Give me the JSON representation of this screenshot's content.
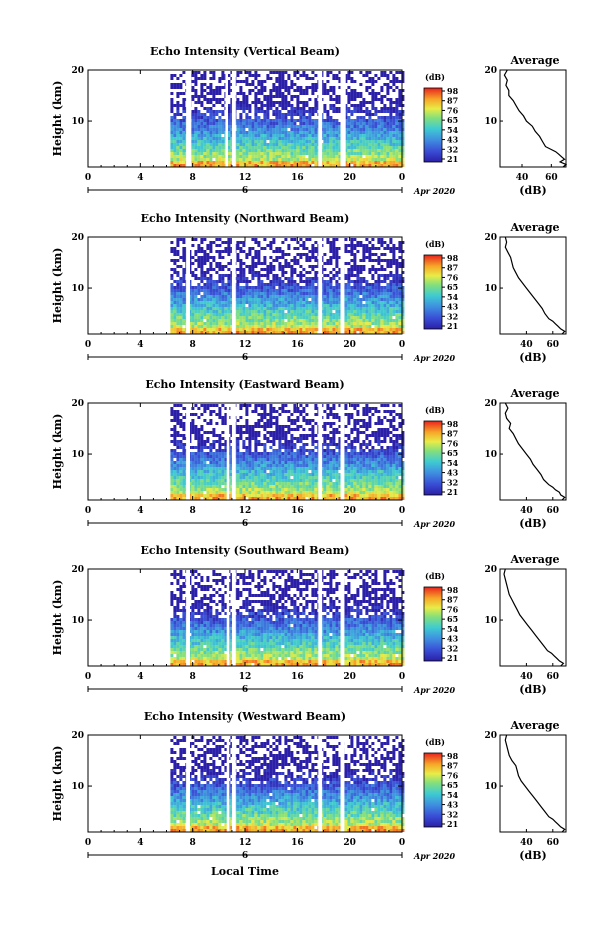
{
  "chart_data": [
    {
      "type": "heatmap",
      "title": "Echo Intensity (Vertical Beam)",
      "ylabel": "Height (km)",
      "xticks": [
        "0",
        "4",
        "8",
        "12",
        "16",
        "20",
        "0"
      ],
      "yticks": [
        "20",
        "10"
      ],
      "date_label": "Apr 2020",
      "day_label": "6",
      "xlim": [
        0,
        24
      ],
      "ylim": [
        1,
        20
      ],
      "data_start_hour": 6.3,
      "gaps": [
        [
          7.5,
          7.9
        ],
        [
          10.5,
          10.7
        ],
        [
          11.0,
          11.3
        ],
        [
          17.6,
          17.9
        ],
        [
          19.3,
          19.7
        ]
      ],
      "colorbar": {
        "unit": "(dB)",
        "ticks": [
          "98",
          "87",
          "76",
          "65",
          "54",
          "43",
          "32",
          "21"
        ],
        "range": [
          21,
          98
        ]
      },
      "profile": {
        "title": "Average",
        "xlabel": "(dB)",
        "xticks": [
          "40",
          "60"
        ],
        "yticks": [
          "20",
          "10"
        ],
        "xlim": [
          25,
          70
        ],
        "ylim": [
          1,
          20
        ],
        "heights": [
          1,
          1.5,
          2,
          2.5,
          3,
          3.5,
          4,
          5,
          6,
          7,
          8,
          9,
          10,
          11,
          12,
          13,
          14,
          15,
          16,
          17,
          18,
          19,
          20
        ],
        "values": [
          68,
          70,
          66,
          69,
          67,
          65,
          63,
          56,
          54,
          52,
          49,
          47,
          43,
          41,
          38,
          36,
          34,
          31,
          31,
          29,
          30,
          28,
          30
        ]
      }
    },
    {
      "type": "heatmap",
      "title": "Echo Intensity (Northward Beam)",
      "ylabel": "Height (km)",
      "xticks": [
        "0",
        "4",
        "8",
        "12",
        "16",
        "20",
        "0"
      ],
      "yticks": [
        "20",
        "10"
      ],
      "date_label": "Apr 2020",
      "day_label": "6",
      "xlim": [
        0,
        24
      ],
      "ylim": [
        1,
        20
      ],
      "data_start_hour": 6.3,
      "gaps": [
        [
          7.5,
          7.8
        ],
        [
          11.0,
          11.3
        ],
        [
          17.6,
          17.9
        ],
        [
          19.3,
          19.6
        ]
      ],
      "colorbar": {
        "unit": "(dB)",
        "ticks": [
          "98",
          "87",
          "76",
          "65",
          "54",
          "43",
          "32",
          "21"
        ],
        "range": [
          21,
          98
        ]
      },
      "profile": {
        "title": "Average",
        "xlabel": "(dB)",
        "xticks": [
          "40",
          "60"
        ],
        "yticks": [
          "20",
          "10"
        ],
        "xlim": [
          20,
          70
        ],
        "ylim": [
          1,
          20
        ],
        "heights": [
          1,
          1.5,
          2,
          2.5,
          3,
          3.5,
          4,
          5,
          6,
          7,
          8,
          9,
          10,
          11,
          12,
          13,
          14,
          15,
          16,
          17,
          18,
          19,
          20
        ],
        "values": [
          67,
          69,
          66,
          64,
          62,
          60,
          57,
          54,
          52,
          49,
          46,
          43,
          40,
          37,
          34,
          32,
          30,
          29,
          28,
          26,
          24,
          25,
          24
        ]
      }
    },
    {
      "type": "heatmap",
      "title": "Echo Intensity (Eastward Beam)",
      "ylabel": "Height (km)",
      "xticks": [
        "0",
        "4",
        "8",
        "12",
        "16",
        "20",
        "0"
      ],
      "yticks": [
        "20",
        "10"
      ],
      "date_label": "Apr 2020",
      "day_label": "6",
      "xlim": [
        0,
        24
      ],
      "ylim": [
        1,
        20
      ],
      "data_start_hour": 6.3,
      "gaps": [
        [
          7.5,
          7.8
        ],
        [
          10.6,
          10.8
        ],
        [
          11.0,
          11.3
        ],
        [
          17.6,
          17.9
        ],
        [
          19.3,
          19.6
        ]
      ],
      "colorbar": {
        "unit": "(dB)",
        "ticks": [
          "98",
          "87",
          "76",
          "65",
          "54",
          "43",
          "32",
          "21"
        ],
        "range": [
          21,
          98
        ]
      },
      "profile": {
        "title": "Average",
        "xlabel": "(dB)",
        "xticks": [
          "40",
          "60"
        ],
        "yticks": [
          "20",
          "10"
        ],
        "xlim": [
          20,
          70
        ],
        "ylim": [
          1,
          20
        ],
        "heights": [
          1,
          1.5,
          2,
          2.5,
          3,
          3.5,
          4,
          5,
          6,
          7,
          8,
          9,
          10,
          11,
          12,
          13,
          14,
          15,
          16,
          17,
          18,
          19,
          20
        ],
        "values": [
          67,
          69,
          66,
          65,
          62,
          60,
          57,
          53,
          51,
          48,
          45,
          43,
          40,
          37,
          34,
          32,
          30,
          27,
          28,
          25,
          24,
          26,
          24
        ]
      }
    },
    {
      "type": "heatmap",
      "title": "Echo Intensity (Southward Beam)",
      "ylabel": "Height (km)",
      "xticks": [
        "0",
        "4",
        "8",
        "12",
        "16",
        "20",
        "0"
      ],
      "yticks": [
        "20",
        "10"
      ],
      "date_label": "Apr 2020",
      "day_label": "6",
      "xlim": [
        0,
        24
      ],
      "ylim": [
        1,
        20
      ],
      "data_start_hour": 6.3,
      "gaps": [
        [
          7.5,
          7.8
        ],
        [
          10.6,
          10.8
        ],
        [
          11.0,
          11.3
        ],
        [
          17.6,
          17.9
        ],
        [
          19.3,
          19.6
        ]
      ],
      "colorbar": {
        "unit": "(dB)",
        "ticks": [
          "98",
          "87",
          "76",
          "65",
          "54",
          "43",
          "32",
          "21"
        ],
        "range": [
          21,
          98
        ]
      },
      "profile": {
        "title": "Average",
        "xlabel": "(dB)",
        "xticks": [
          "40",
          "60"
        ],
        "yticks": [
          "20",
          "10"
        ],
        "xlim": [
          20,
          70
        ],
        "ylim": [
          1,
          20
        ],
        "heights": [
          1,
          1.5,
          2,
          2.5,
          3,
          3.5,
          4,
          5,
          6,
          7,
          8,
          9,
          10,
          11,
          12,
          13,
          14,
          15,
          16,
          17,
          18,
          19,
          20
        ],
        "values": [
          66,
          68,
          65,
          63,
          61,
          59,
          56,
          53,
          50,
          47,
          44,
          41,
          38,
          35,
          33,
          31,
          29,
          27,
          26,
          25,
          24,
          23,
          24
        ]
      }
    },
    {
      "type": "heatmap",
      "title": "Echo Intensity (Westward Beam)",
      "ylabel": "Height (km)",
      "xlabel": "Local Time",
      "xticks": [
        "0",
        "4",
        "8",
        "12",
        "16",
        "20",
        "0"
      ],
      "yticks": [
        "20",
        "10"
      ],
      "date_label": "Apr 2020",
      "day_label": "6",
      "xlim": [
        0,
        24
      ],
      "ylim": [
        1,
        20
      ],
      "data_start_hour": 6.3,
      "gaps": [
        [
          7.5,
          7.8
        ],
        [
          10.6,
          10.8
        ],
        [
          11.0,
          11.3
        ],
        [
          17.6,
          17.9
        ],
        [
          19.3,
          19.6
        ]
      ],
      "colorbar": {
        "unit": "(dB)",
        "ticks": [
          "98",
          "87",
          "76",
          "65",
          "54",
          "43",
          "32",
          "21"
        ],
        "range": [
          21,
          98
        ]
      },
      "profile": {
        "title": "Average",
        "xlabel": "(dB)",
        "xticks": [
          "40",
          "60"
        ],
        "yticks": [
          "20",
          "10"
        ],
        "xlim": [
          20,
          70
        ],
        "ylim": [
          1,
          20
        ],
        "heights": [
          1,
          1.5,
          2,
          2.5,
          3,
          3.5,
          4,
          5,
          6,
          7,
          8,
          9,
          10,
          11,
          12,
          13,
          14,
          15,
          16,
          17,
          18,
          19,
          20
        ],
        "values": [
          67,
          69,
          66,
          64,
          62,
          60,
          57,
          54,
          51,
          48,
          45,
          42,
          39,
          36,
          34,
          33,
          32,
          29,
          27,
          26,
          25,
          24,
          25
        ]
      }
    }
  ]
}
